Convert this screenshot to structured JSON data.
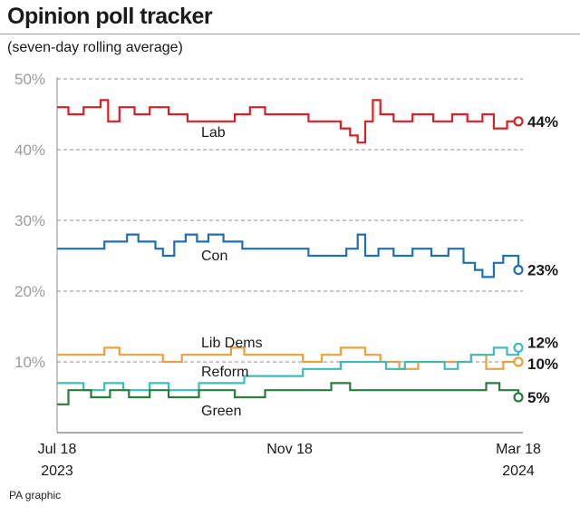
{
  "header": {
    "title": "Opinion poll tracker",
    "subtitle": "(seven-day rolling average)"
  },
  "footer": {
    "credit": "PA graphic"
  },
  "chart_data": {
    "type": "line",
    "x_ticks": [
      {
        "date": "2023-07-18",
        "line1": "Jul 18",
        "line2": "2023"
      },
      {
        "date": "2023-11-18",
        "line1": "Nov 18",
        "line2": ""
      },
      {
        "date": "2024-03-18",
        "line1": "Mar 18",
        "line2": "2024"
      }
    ],
    "xlim": [
      "2023-07-18",
      "2024-03-18"
    ],
    "ylim": [
      0,
      50
    ],
    "y_ticks": [
      10,
      20,
      30,
      40,
      50
    ],
    "y_tick_labels": [
      "10%",
      "20%",
      "30%",
      "40%",
      "50%"
    ],
    "grid": "horizontal dashed",
    "series": [
      {
        "name": "Lab",
        "color": "#d62027",
        "end_label": "44%",
        "points": [
          [
            "2023-07-18",
            46
          ],
          [
            "2023-07-24",
            45
          ],
          [
            "2023-08-01",
            46
          ],
          [
            "2023-08-10",
            47
          ],
          [
            "2023-08-14",
            44
          ],
          [
            "2023-08-20",
            46
          ],
          [
            "2023-08-28",
            45
          ],
          [
            "2023-09-05",
            46
          ],
          [
            "2023-09-15",
            45
          ],
          [
            "2023-09-25",
            44
          ],
          [
            "2023-10-10",
            44
          ],
          [
            "2023-10-20",
            45
          ],
          [
            "2023-10-28",
            46
          ],
          [
            "2023-11-05",
            45
          ],
          [
            "2023-11-18",
            45
          ],
          [
            "2023-11-28",
            44
          ],
          [
            "2023-12-05",
            44
          ],
          [
            "2023-12-15",
            43
          ],
          [
            "2023-12-20",
            42
          ],
          [
            "2023-12-24",
            41
          ],
          [
            "2023-12-28",
            44
          ],
          [
            "2024-01-01",
            47
          ],
          [
            "2024-01-05",
            45
          ],
          [
            "2024-01-12",
            44
          ],
          [
            "2024-01-22",
            45
          ],
          [
            "2024-02-02",
            44
          ],
          [
            "2024-02-12",
            45
          ],
          [
            "2024-02-20",
            44
          ],
          [
            "2024-02-28",
            45
          ],
          [
            "2024-03-05",
            43
          ],
          [
            "2024-03-12",
            44
          ],
          [
            "2024-03-18",
            44
          ]
        ]
      },
      {
        "name": "Con",
        "color": "#1f6fb2",
        "end_label": "23%",
        "points": [
          [
            "2023-07-18",
            26
          ],
          [
            "2023-08-05",
            26
          ],
          [
            "2023-08-12",
            27
          ],
          [
            "2023-08-20",
            27
          ],
          [
            "2023-08-24",
            28
          ],
          [
            "2023-08-30",
            27
          ],
          [
            "2023-09-08",
            26
          ],
          [
            "2023-09-12",
            25
          ],
          [
            "2023-09-18",
            27
          ],
          [
            "2023-09-24",
            28
          ],
          [
            "2023-09-30",
            27
          ],
          [
            "2023-10-06",
            28
          ],
          [
            "2023-10-14",
            27
          ],
          [
            "2023-10-24",
            26
          ],
          [
            "2023-11-05",
            26
          ],
          [
            "2023-11-18",
            26
          ],
          [
            "2023-11-28",
            25
          ],
          [
            "2023-12-08",
            25
          ],
          [
            "2023-12-18",
            26
          ],
          [
            "2023-12-24",
            28
          ],
          [
            "2023-12-28",
            25
          ],
          [
            "2024-01-04",
            26
          ],
          [
            "2024-01-12",
            25
          ],
          [
            "2024-01-22",
            26
          ],
          [
            "2024-02-01",
            25
          ],
          [
            "2024-02-10",
            26
          ],
          [
            "2024-02-18",
            24
          ],
          [
            "2024-02-24",
            23
          ],
          [
            "2024-02-28",
            22
          ],
          [
            "2024-03-05",
            24
          ],
          [
            "2024-03-10",
            25
          ],
          [
            "2024-03-18",
            23
          ]
        ]
      },
      {
        "name": "Lib Dems",
        "color": "#f0a035",
        "end_label": "10%",
        "points": [
          [
            "2023-07-18",
            11
          ],
          [
            "2023-08-01",
            11
          ],
          [
            "2023-08-12",
            12
          ],
          [
            "2023-08-20",
            11
          ],
          [
            "2023-09-01",
            11
          ],
          [
            "2023-09-12",
            10
          ],
          [
            "2023-09-22",
            11
          ],
          [
            "2023-10-05",
            11
          ],
          [
            "2023-10-18",
            12
          ],
          [
            "2023-10-25",
            11
          ],
          [
            "2023-11-05",
            11
          ],
          [
            "2023-11-18",
            11
          ],
          [
            "2023-11-25",
            10
          ],
          [
            "2023-12-05",
            11
          ],
          [
            "2023-12-15",
            12
          ],
          [
            "2023-12-22",
            12
          ],
          [
            "2023-12-28",
            11
          ],
          [
            "2024-01-05",
            10
          ],
          [
            "2024-01-15",
            9
          ],
          [
            "2024-01-25",
            10
          ],
          [
            "2024-02-05",
            10
          ],
          [
            "2024-02-15",
            10
          ],
          [
            "2024-02-22",
            11
          ],
          [
            "2024-03-01",
            9
          ],
          [
            "2024-03-10",
            10
          ],
          [
            "2024-03-18",
            10
          ]
        ]
      },
      {
        "name": "Reform",
        "color": "#3bbcc0",
        "end_label": "12%",
        "points": [
          [
            "2023-07-18",
            7
          ],
          [
            "2023-08-01",
            6
          ],
          [
            "2023-08-12",
            7
          ],
          [
            "2023-08-22",
            6
          ],
          [
            "2023-09-05",
            7
          ],
          [
            "2023-09-15",
            6
          ],
          [
            "2023-10-01",
            7
          ],
          [
            "2023-10-15",
            7
          ],
          [
            "2023-10-25",
            8
          ],
          [
            "2023-11-08",
            8
          ],
          [
            "2023-11-18",
            8
          ],
          [
            "2023-11-25",
            9
          ],
          [
            "2023-12-08",
            9
          ],
          [
            "2023-12-15",
            10
          ],
          [
            "2023-12-28",
            10
          ],
          [
            "2024-01-08",
            9
          ],
          [
            "2024-01-18",
            10
          ],
          [
            "2024-01-28",
            10
          ],
          [
            "2024-02-08",
            9
          ],
          [
            "2024-02-15",
            10
          ],
          [
            "2024-02-22",
            11
          ],
          [
            "2024-03-01",
            11
          ],
          [
            "2024-03-05",
            12
          ],
          [
            "2024-03-12",
            11
          ],
          [
            "2024-03-18",
            12
          ]
        ]
      },
      {
        "name": "Green",
        "color": "#2a7d3b",
        "end_label": "5%",
        "points": [
          [
            "2023-07-18",
            4
          ],
          [
            "2023-07-24",
            6
          ],
          [
            "2023-08-05",
            5
          ],
          [
            "2023-08-15",
            6
          ],
          [
            "2023-08-25",
            5
          ],
          [
            "2023-09-05",
            6
          ],
          [
            "2023-09-15",
            5
          ],
          [
            "2023-10-01",
            6
          ],
          [
            "2023-10-20",
            5
          ],
          [
            "2023-11-05",
            6
          ],
          [
            "2023-11-18",
            6
          ],
          [
            "2023-12-01",
            6
          ],
          [
            "2023-12-10",
            7
          ],
          [
            "2023-12-20",
            6
          ],
          [
            "2024-01-10",
            6
          ],
          [
            "2024-01-25",
            6
          ],
          [
            "2024-02-08",
            6
          ],
          [
            "2024-02-22",
            6
          ],
          [
            "2024-03-01",
            7
          ],
          [
            "2024-03-08",
            6
          ],
          [
            "2024-03-18",
            5
          ]
        ]
      }
    ]
  }
}
